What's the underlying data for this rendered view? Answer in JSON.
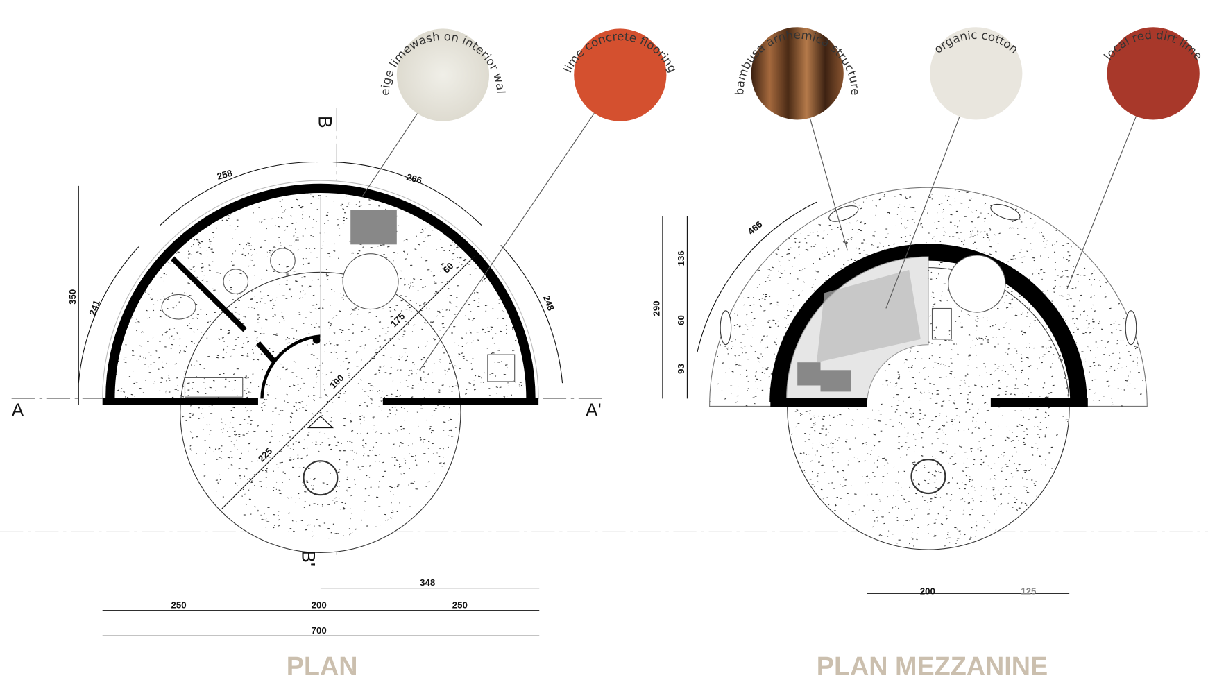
{
  "materials": [
    "beige limewash on interior walls",
    "lime concrete flooring",
    "bambusa arnhemica structure",
    "organic cotton",
    "local red dirt lime"
  ],
  "plan": {
    "title": "PLAN",
    "section_labels": [
      "A",
      "A'",
      "B",
      "B'"
    ],
    "dimensions": [
      258,
      266,
      241,
      248,
      350,
      60,
      175,
      100,
      225,
      348,
      250,
      200,
      250,
      700
    ]
  },
  "mezzanine": {
    "title": "PLAN MEZZANINE",
    "dimensions": [
      466,
      290,
      136,
      60,
      93,
      200,
      125
    ]
  }
}
